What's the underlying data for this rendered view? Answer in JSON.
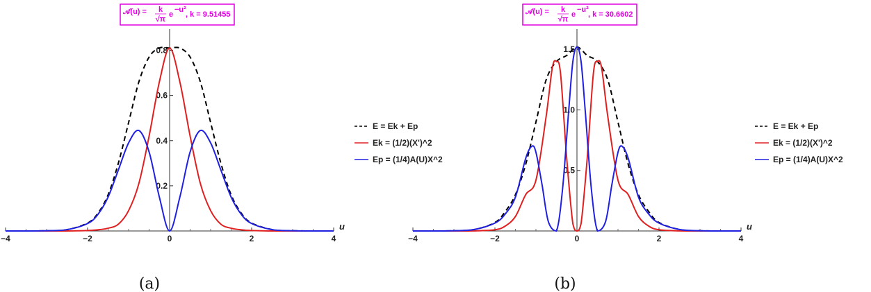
{
  "chart_data": [
    {
      "type": "line",
      "panel_label": "(a)",
      "title": "𝒜(u) = k/√π e^(−u²), k = 9.51455",
      "title_lhs": "𝒜(u) =",
      "title_exp": "e",
      "title_exp_sup": "−u²",
      "title_frac_num": "k",
      "title_frac_den": "√π",
      "title_k": ", k = 9.51455",
      "xlabel": "u",
      "ylabel": "",
      "xlim": [
        -4,
        4
      ],
      "ylim": [
        0,
        0.82
      ],
      "xticks": [
        -4,
        -2,
        0,
        2,
        4
      ],
      "xtick_labels": [
        "−4",
        "−2",
        "0",
        "2",
        "4"
      ],
      "yticks": [
        0.2,
        0.4,
        0.6,
        0.8
      ],
      "ytick_labels": [
        "0.2",
        "0.4",
        "0.6",
        "0.8"
      ],
      "legend": "right",
      "series": [
        {
          "name": "E = Ek + Ep",
          "color": "#000000",
          "dashed": true,
          "x": [
            -4,
            -3.5,
            -3,
            -2.5,
            -2,
            -1.75,
            -1.5,
            -1.25,
            -1,
            -0.75,
            -0.5,
            -0.25,
            0,
            0.25,
            0.5,
            0.75,
            1,
            1.25,
            1.5,
            1.75,
            2,
            2.5,
            3,
            3.5,
            4
          ],
          "y": [
            0.0,
            0.0,
            0.001,
            0.006,
            0.035,
            0.078,
            0.16,
            0.3,
            0.48,
            0.66,
            0.77,
            0.81,
            0.81,
            0.81,
            0.77,
            0.66,
            0.48,
            0.3,
            0.16,
            0.078,
            0.035,
            0.006,
            0.001,
            0.0,
            0.0
          ]
        },
        {
          "name": "Ek = (1/2)(X')^2",
          "color": "#e02020",
          "dashed": false,
          "x": [
            -4,
            -3,
            -2.5,
            -2,
            -1.75,
            -1.5,
            -1.25,
            -1,
            -0.75,
            -0.5,
            -0.25,
            0,
            0.25,
            0.5,
            0.75,
            1,
            1.25,
            1.5,
            1.75,
            2,
            2.5,
            3,
            4
          ],
          "y": [
            0.0,
            0.0,
            0.0,
            0.002,
            0.005,
            0.012,
            0.03,
            0.09,
            0.21,
            0.42,
            0.66,
            0.81,
            0.66,
            0.42,
            0.21,
            0.09,
            0.03,
            0.012,
            0.005,
            0.002,
            0.0,
            0.0,
            0.0
          ]
        },
        {
          "name": "Ep = (1/4)A(U)X^2",
          "color": "#2020e0",
          "dashed": false,
          "x": [
            -4,
            -3.5,
            -3,
            -2.5,
            -2,
            -1.75,
            -1.5,
            -1.25,
            -1,
            -0.75,
            -0.5,
            -0.25,
            0,
            0.25,
            0.5,
            0.75,
            1,
            1.25,
            1.5,
            1.75,
            2,
            2.5,
            3,
            3.5,
            4
          ],
          "y": [
            0.0,
            0.0,
            0.001,
            0.006,
            0.033,
            0.073,
            0.15,
            0.27,
            0.39,
            0.445,
            0.35,
            0.15,
            0.0,
            0.15,
            0.35,
            0.445,
            0.39,
            0.27,
            0.15,
            0.073,
            0.033,
            0.006,
            0.001,
            0.0,
            0.0
          ]
        }
      ]
    },
    {
      "type": "line",
      "panel_label": "(b)",
      "title": "𝒜(u) = k/√π e^(−u²), k = 30.6602",
      "title_lhs": "𝒜(u) =",
      "title_exp": "e",
      "title_exp_sup": "−u²",
      "title_frac_num": "k",
      "title_frac_den": "√π",
      "title_k": ", k = 30.6602",
      "xlabel": "u",
      "ylabel": "",
      "xlim": [
        -4,
        4
      ],
      "ylim": [
        0,
        1.53
      ],
      "xticks": [
        -4,
        -2,
        0,
        2,
        4
      ],
      "xtick_labels": [
        "−4",
        "−2",
        "0",
        "2",
        "4"
      ],
      "yticks": [
        0.5,
        1.0,
        1.5
      ],
      "ytick_labels": [
        "0.5",
        "1.0",
        "1.5"
      ],
      "legend": "right",
      "series": [
        {
          "name": "E = Ek + Ep",
          "color": "#000000",
          "dashed": true,
          "x": [
            -4,
            -3.5,
            -3,
            -2.5,
            -2,
            -1.75,
            -1.5,
            -1.25,
            -1,
            -0.75,
            -0.5,
            -0.25,
            0,
            0.25,
            0.5,
            0.75,
            1,
            1.25,
            1.5,
            1.75,
            2,
            2.5,
            3,
            3.5,
            4
          ],
          "y": [
            0.0,
            0.0,
            0.002,
            0.012,
            0.07,
            0.16,
            0.3,
            0.55,
            0.9,
            1.25,
            1.4,
            1.45,
            1.52,
            1.45,
            1.4,
            1.25,
            0.9,
            0.55,
            0.3,
            0.16,
            0.07,
            0.012,
            0.002,
            0.0,
            0.0
          ]
        },
        {
          "name": "Ek = (1/2)(X')^2",
          "color": "#e02020",
          "dashed": false,
          "x": [
            -4,
            -3,
            -2.5,
            -2,
            -1.75,
            -1.5,
            -1.25,
            -1,
            -0.75,
            -0.6,
            -0.5,
            -0.4,
            -0.25,
            -0.1,
            0,
            0.1,
            0.25,
            0.4,
            0.5,
            0.6,
            0.75,
            1,
            1.25,
            1.5,
            1.75,
            2,
            2.5,
            3,
            4
          ],
          "y": [
            0.0,
            0.0,
            0.001,
            0.01,
            0.04,
            0.12,
            0.3,
            0.42,
            0.95,
            1.35,
            1.4,
            1.3,
            0.6,
            0.06,
            0.0,
            0.06,
            0.6,
            1.3,
            1.4,
            1.35,
            0.95,
            0.42,
            0.3,
            0.12,
            0.04,
            0.01,
            0.001,
            0.0,
            0.0
          ]
        },
        {
          "name": "Ep = (1/4)A(U)X^2",
          "color": "#2020e0",
          "dashed": false,
          "x": [
            -4,
            -3.5,
            -3,
            -2.5,
            -2,
            -1.75,
            -1.5,
            -1.25,
            -1.1,
            -1,
            -0.85,
            -0.7,
            -0.5,
            -0.35,
            -0.2,
            -0.1,
            0,
            0.1,
            0.2,
            0.35,
            0.5,
            0.7,
            0.85,
            1,
            1.1,
            1.25,
            1.5,
            1.75,
            2,
            2.5,
            3,
            3.5,
            4
          ],
          "y": [
            0.0,
            0.0,
            0.002,
            0.012,
            0.065,
            0.14,
            0.28,
            0.6,
            0.7,
            0.65,
            0.38,
            0.08,
            0.0,
            0.35,
            1.0,
            1.4,
            1.52,
            1.4,
            1.0,
            0.35,
            0.0,
            0.08,
            0.38,
            0.65,
            0.7,
            0.6,
            0.28,
            0.14,
            0.065,
            0.012,
            0.002,
            0.0,
            0.0
          ]
        }
      ]
    }
  ]
}
